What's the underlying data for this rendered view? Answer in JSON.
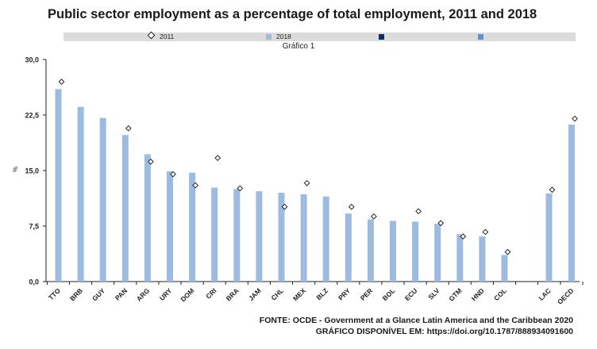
{
  "chart_data": {
    "type": "bar",
    "title": "Public sector employment as a percentage of total employment, 2011 and 2018",
    "subtitle": "Gráfico 1",
    "ylabel": "%",
    "ylim": [
      0,
      30
    ],
    "yticks": [
      "0,0",
      "7,5",
      "15,0",
      "22,5",
      "30,0"
    ],
    "grid": false,
    "legend_position": "top",
    "categories": [
      "TTO",
      "BRB",
      "GUY",
      "PAN",
      "ARG",
      "URY",
      "DOM",
      "CRI",
      "BRA",
      "JAM",
      "CHL",
      "MEX",
      "BLZ",
      "PRY",
      "PER",
      "BOL",
      "ECU",
      "SLV",
      "GTM",
      "HND",
      "COL",
      "LAC",
      "OECD"
    ],
    "series": [
      {
        "name": "2011",
        "kind": "marker",
        "values": [
          27.0,
          null,
          null,
          20.7,
          16.2,
          14.5,
          13.0,
          16.7,
          12.6,
          null,
          10.1,
          13.3,
          null,
          10.1,
          8.8,
          null,
          9.5,
          7.9,
          6.1,
          6.7,
          4.0,
          12.4,
          22.0
        ]
      },
      {
        "name": "2018",
        "kind": "bar",
        "values": [
          26.0,
          23.6,
          22.1,
          19.8,
          17.2,
          14.9,
          14.7,
          12.7,
          12.5,
          12.2,
          12.0,
          11.8,
          11.5,
          9.2,
          8.4,
          8.2,
          8.1,
          7.8,
          6.4,
          6.1,
          3.6,
          11.9,
          21.2
        ]
      }
    ],
    "colors": {
      "bar": "#9dbbe0",
      "legend_dark": "#0d2f6b",
      "legend_mid": "#5b93d6",
      "axis": "#222222"
    }
  },
  "legend": {
    "label_2011": "2011",
    "label_2018": "2018"
  },
  "source": {
    "line1": "FONTE: OCDE - Government at a Glance Latin America and the Caribbean 2020",
    "line2": "GRÁFICO DISPONÍVEL EM: https://doi.org/10.1787/888934091600"
  }
}
